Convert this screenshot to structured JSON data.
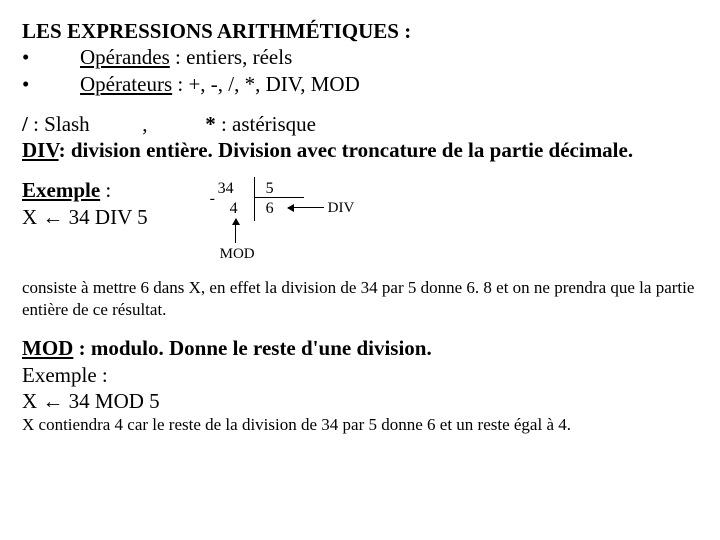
{
  "title": "LES EXPRESSIONS ARITHMÉTIQUES :",
  "bullets": {
    "operands_label": "Opérandes",
    "operands_text": " : entiers, réels",
    "operators_label": "Opérateurs",
    "operators_text": " : +, -, /, *, DIV, MOD"
  },
  "slash_line": {
    "slash": "/",
    "slash_text": " : Slash",
    "comma": ",",
    "asterisk": "*",
    "asterisk_text": " : astérisque"
  },
  "div_def": {
    "div_label": "DIV",
    "div_text": ": division entière. Division avec troncature de la partie décimale."
  },
  "example": {
    "label": "Exemple",
    "colon": " :",
    "expr": "X ←   34 DIV 5"
  },
  "diagram": {
    "n34": "34",
    "n5": "5",
    "n4": "4",
    "n6": "6",
    "minus": "-",
    "div": "DIV",
    "mod": "MOD"
  },
  "explanation": "consiste à mettre 6 dans X, en effet la division de  34 par 5 donne 6. 8 et on ne prendra que la partie entière de ce résultat.",
  "mod_def": {
    "mod_label": "MOD",
    "mod_text": " : modulo. Donne le reste d'une division."
  },
  "mod_example": {
    "label": "Exemple :",
    "expr": "X ←   34 MOD 5"
  },
  "mod_explanation": "X contiendra 4 car le reste de la division de 34 par 5 donne 6 et un reste égal à 4."
}
